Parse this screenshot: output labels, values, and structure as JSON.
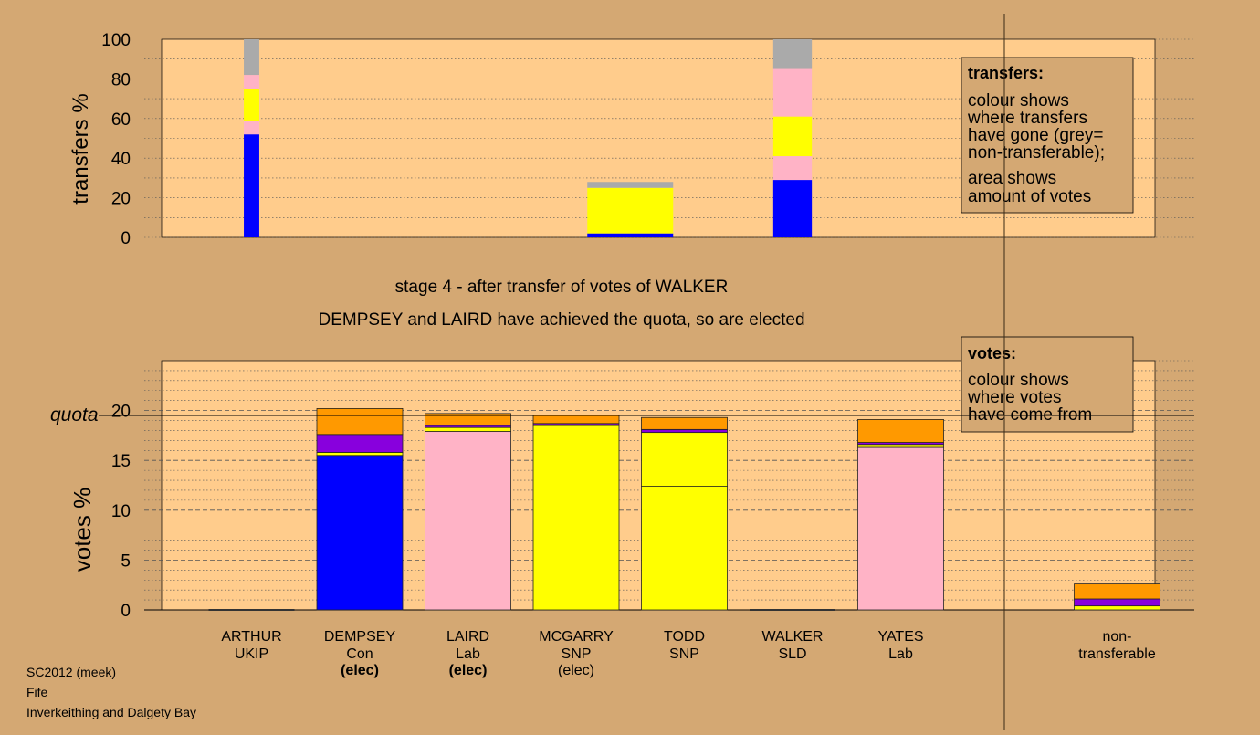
{
  "colors": {
    "background": "#d4a873",
    "plot_bg": "#ffcc8c",
    "Con": "#0000ff",
    "Lab": "#ffb3c6",
    "SNP": "#ffff00",
    "UKIP": "#8800dd",
    "SLD": "#ff9900",
    "nontransferable": "#aaaaaa"
  },
  "headline": {
    "stage": "stage 4 - after transfer of votes of WALKER",
    "status": "DEMPSEY and LAIRD have achieved the quota, so are elected"
  },
  "footer": {
    "source": "SC2012 (meek)",
    "council": "Fife",
    "ward": "Inverkeithing and Dalgety Bay"
  },
  "chart_data": [
    {
      "type": "bar",
      "name": "transfers",
      "ylabel": "transfers %",
      "ylim": [
        0,
        100
      ],
      "yticks": [
        "0",
        "20",
        "40",
        "60",
        "80",
        "100"
      ],
      "grid": true,
      "legend": {
        "title": "transfers:",
        "lines": [
          "colour shows",
          "where transfers",
          "have gone (grey=",
          "non-transferable);"
        ],
        "lines2": [
          "area shows",
          "amount of votes"
        ],
        "placement": "top-right"
      },
      "columns": [
        {
          "slot": 0,
          "width_frac": 0.18,
          "segments": [
            {
              "party": "Con",
              "from": 0,
              "to": 52
            },
            {
              "party": "Lab",
              "from": 52,
              "to": 59
            },
            {
              "party": "SNP",
              "from": 59,
              "to": 75
            },
            {
              "party": "Lab",
              "from": 75,
              "to": 82
            },
            {
              "party": "nontransferable",
              "from": 82,
              "to": 100
            }
          ]
        },
        {
          "slot": 3.5,
          "width_frac": 1.0,
          "segments": [
            {
              "party": "Con",
              "from": 0,
              "to": 2
            },
            {
              "party": "SNP",
              "from": 2,
              "to": 25
            },
            {
              "party": "nontransferable",
              "from": 25,
              "to": 28
            }
          ]
        },
        {
          "slot": 5,
          "width_frac": 0.45,
          "segments": [
            {
              "party": "Con",
              "from": 0,
              "to": 29
            },
            {
              "party": "Lab",
              "from": 29,
              "to": 41
            },
            {
              "party": "SNP",
              "from": 41,
              "to": 61
            },
            {
              "party": "Lab",
              "from": 61,
              "to": 85
            },
            {
              "party": "nontransferable",
              "from": 85,
              "to": 100
            }
          ]
        }
      ]
    },
    {
      "type": "bar",
      "name": "votes",
      "ylabel": "votes %",
      "ylim": [
        0,
        25
      ],
      "yticks": [
        "0",
        "5",
        "10",
        "15",
        "20"
      ],
      "quota": 19.5,
      "quota_label": "quota",
      "grid": true,
      "legend": {
        "title": "votes:",
        "lines": [
          "colour shows",
          "where votes",
          "have come from"
        ],
        "placement": "top-right"
      },
      "categories": [
        {
          "name": "ARTHUR",
          "party": "UKIP",
          "status": ""
        },
        {
          "name": "DEMPSEY",
          "party": "Con",
          "status": "(elec)",
          "bold": true
        },
        {
          "name": "LAIRD",
          "party": "Lab",
          "status": "(elec)",
          "bold": true
        },
        {
          "name": "MCGARRY",
          "party": "SNP",
          "status": "(elec)",
          "bold": false
        },
        {
          "name": "TODD",
          "party": "SNP",
          "status": ""
        },
        {
          "name": "WALKER",
          "party": "SLD",
          "status": ""
        },
        {
          "name": "YATES",
          "party": "Lab",
          "status": ""
        },
        {
          "name": "",
          "party": "",
          "status": ""
        },
        {
          "name": "non-",
          "party": "transferable",
          "status": ""
        }
      ],
      "bars": [
        [],
        [
          {
            "party": "Con",
            "v": 15.5
          },
          {
            "party": "SNP",
            "v": 0.3
          },
          {
            "party": "UKIP",
            "v": 1.8
          },
          {
            "party": "SLD",
            "v": 2.6
          }
        ],
        [
          {
            "party": "Lab",
            "v": 17.9
          },
          {
            "party": "SNP",
            "v": 0.4
          },
          {
            "party": "UKIP",
            "v": 0.2
          },
          {
            "party": "SLD",
            "v": 1.2
          }
        ],
        [
          {
            "party": "SNP",
            "v": 18.5
          },
          {
            "party": "UKIP",
            "v": 0.2
          },
          {
            "party": "SLD",
            "v": 0.8
          }
        ],
        [
          {
            "party": "SNP",
            "v": 12.4
          },
          {
            "party": "SNP",
            "v": 5.4
          },
          {
            "party": "UKIP",
            "v": 0.3
          },
          {
            "party": "SLD",
            "v": 1.2
          }
        ],
        [],
        [
          {
            "party": "Lab",
            "v": 16.3
          },
          {
            "party": "SNP",
            "v": 0.3
          },
          {
            "party": "UKIP",
            "v": 0.2
          },
          {
            "party": "SLD",
            "v": 2.3
          }
        ],
        [],
        [
          {
            "party": "SNP",
            "v": 0.4
          },
          {
            "party": "UKIP",
            "v": 0.7
          },
          {
            "party": "SLD",
            "v": 1.5
          }
        ]
      ]
    }
  ]
}
